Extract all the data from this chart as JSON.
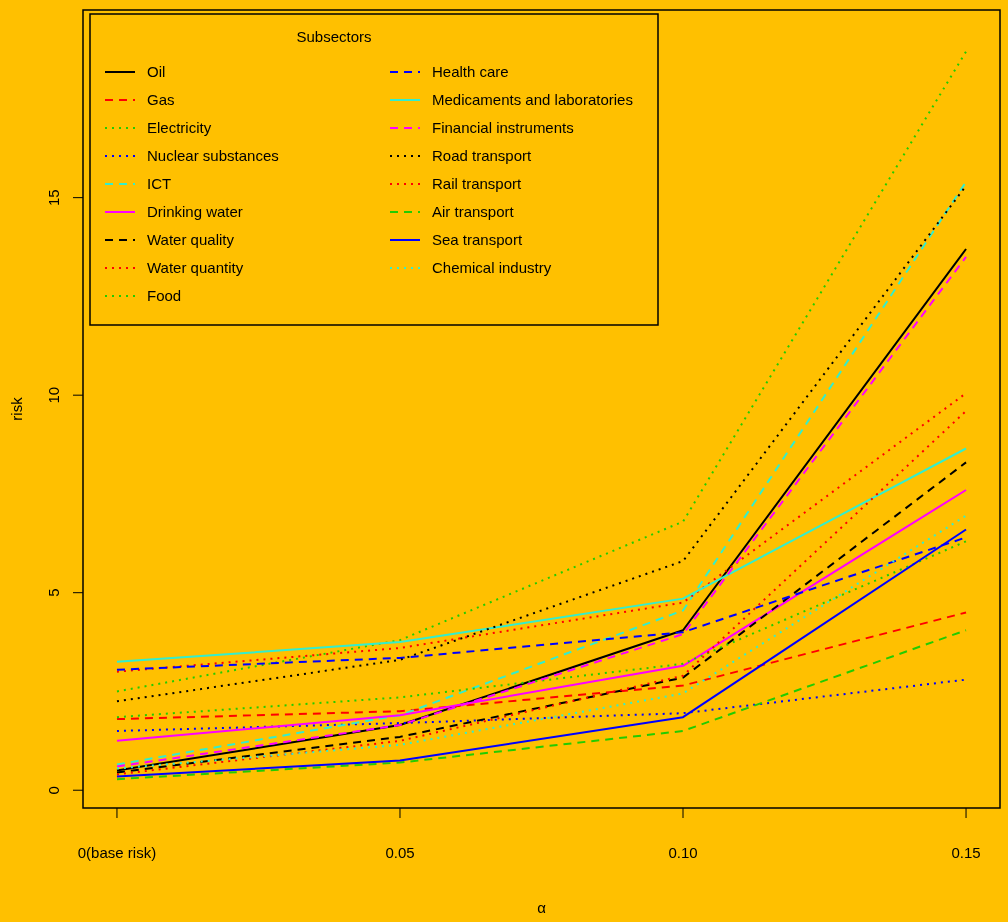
{
  "chart_data": {
    "type": "line",
    "xlabel": "α",
    "ylabel": "risk",
    "legend_title": "Subsectors",
    "legend": "top left",
    "grid": false,
    "x": [
      0,
      0.05,
      0.1,
      0.15
    ],
    "xlim": [
      -0.006,
      0.156
    ],
    "xticks": [
      {
        "value": 0,
        "label": "0(base risk)"
      },
      0.05,
      {
        "value": 0.1,
        "label": "0.10"
      },
      0.15
    ],
    "ylim": [
      -0.45,
      19.75
    ],
    "yticks": [
      0,
      5,
      10,
      15
    ],
    "series": [
      {
        "name": "Oil",
        "color": "#000000",
        "line_style": "solid",
        "values": [
          0.5,
          1.65,
          4.05,
          13.7
        ]
      },
      {
        "name": "Gas",
        "color": "#ff0000",
        "line_style": "dashed",
        "values": [
          1.8,
          2.0,
          2.65,
          4.5
        ]
      },
      {
        "name": "Electricity",
        "color": "#22cc00",
        "line_style": "dotted",
        "values": [
          2.5,
          3.8,
          6.8,
          18.7
        ]
      },
      {
        "name": "Nuclear substances",
        "color": "#0000ff",
        "line_style": "dotted",
        "values": [
          1.5,
          1.7,
          1.95,
          2.8
        ]
      },
      {
        "name": "ICT",
        "color": "#33eecc",
        "line_style": "dashed",
        "values": [
          0.65,
          1.9,
          4.55,
          15.4
        ]
      },
      {
        "name": "Drinking water",
        "color": "#ff00ff",
        "line_style": "solid",
        "values": [
          1.25,
          1.9,
          3.15,
          7.6
        ]
      },
      {
        "name": "Water quality",
        "color": "#000000",
        "line_style": "dashed",
        "values": [
          0.45,
          1.35,
          2.85,
          8.3
        ]
      },
      {
        "name": "Water quantity",
        "color": "#ff0000",
        "line_style": "dotted",
        "values": [
          3.0,
          3.6,
          4.75,
          10.05
        ]
      },
      {
        "name": "Food",
        "color": "#22cc00",
        "line_style": "dotted",
        "values": [
          1.85,
          2.35,
          3.2,
          6.3
        ]
      },
      {
        "name": "Health care",
        "color": "#0000ff",
        "line_style": "dashed",
        "values": [
          3.05,
          3.35,
          4.0,
          6.4
        ]
      },
      {
        "name": "Medicaments and laboratories",
        "color": "#33eecc",
        "line_style": "solid",
        "values": [
          3.25,
          3.75,
          4.85,
          8.65
        ]
      },
      {
        "name": "Financial instruments",
        "color": "#ff00ff",
        "line_style": "dashed",
        "values": [
          0.6,
          1.65,
          3.95,
          13.5
        ]
      },
      {
        "name": "Road transport",
        "color": "#000000",
        "line_style": "dotted",
        "values": [
          2.25,
          3.3,
          5.8,
          15.3
        ]
      },
      {
        "name": "Rail transport",
        "color": "#ff0000",
        "line_style": "dotted",
        "values": [
          0.4,
          1.25,
          2.9,
          9.6
        ]
      },
      {
        "name": "Air transport",
        "color": "#22cc00",
        "line_style": "dashed",
        "values": [
          0.28,
          0.7,
          1.5,
          4.05
        ]
      },
      {
        "name": "Sea transport",
        "color": "#0000ff",
        "line_style": "solid",
        "values": [
          0.35,
          0.75,
          1.85,
          6.6
        ]
      },
      {
        "name": "Chemical industry",
        "color": "#33eecc",
        "line_style": "dotted",
        "values": [
          0.55,
          1.15,
          2.45,
          6.95
        ]
      }
    ]
  }
}
